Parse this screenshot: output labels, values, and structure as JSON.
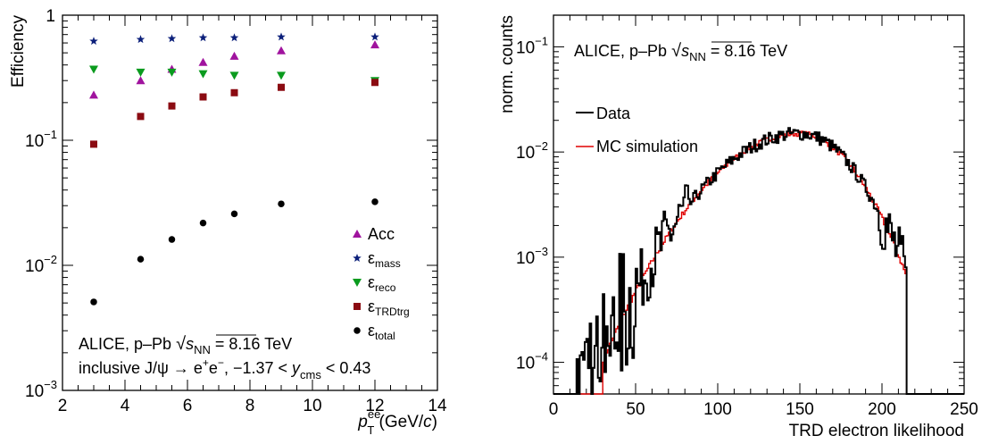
{
  "chart_data": [
    {
      "type": "scatter",
      "ylog": true,
      "xlim": [
        2,
        14
      ],
      "ylim": [
        0.001,
        1
      ],
      "x_ticks": [
        2,
        4,
        6,
        8,
        10,
        12,
        14
      ],
      "x_tick_labels": [
        "2",
        "4",
        "6",
        "8",
        "10",
        "12",
        "14"
      ],
      "y_ticks": [
        0.001,
        0.01,
        0.1,
        1
      ],
      "y_tick_labels": [
        {
          "base": "10",
          "exp": "−3"
        },
        {
          "base": "10",
          "exp": "−2"
        },
        {
          "base": "10",
          "exp": "−1"
        },
        {
          "base": "1",
          "exp": ""
        }
      ],
      "ylabel": "Efficiency",
      "xlabel": {
        "main": "p",
        "sub": "T",
        "sup": "ee",
        "unit": " (GeV/",
        "unit_italic": "c",
        "unit_close": ")"
      },
      "series": [
        {
          "name": "Acc",
          "sub": "",
          "color": "#a0139e",
          "marker": "triangle-up",
          "x": [
            3,
            4.5,
            5.5,
            6.5,
            7.5,
            9,
            12
          ],
          "y": [
            0.23,
            0.3,
            0.37,
            0.42,
            0.47,
            0.52,
            0.58
          ]
        },
        {
          "name": "ε",
          "sub": "mass",
          "color": "#0b1f7a",
          "marker": "star",
          "x": [
            3,
            4.5,
            5.5,
            6.5,
            7.5,
            9,
            12
          ],
          "y": [
            0.62,
            0.64,
            0.65,
            0.66,
            0.66,
            0.67,
            0.67
          ]
        },
        {
          "name": "ε",
          "sub": "reco",
          "color": "#0a9b1e",
          "marker": "triangle-down",
          "x": [
            3,
            4.5,
            5.5,
            6.5,
            7.5,
            9,
            12
          ],
          "y": [
            0.37,
            0.35,
            0.35,
            0.34,
            0.33,
            0.33,
            0.3
          ]
        },
        {
          "name": "ε",
          "sub": "TRDtrg",
          "color": "#8b0b12",
          "marker": "square",
          "x": [
            3,
            4.5,
            5.5,
            6.5,
            7.5,
            9,
            12
          ],
          "y": [
            0.093,
            0.155,
            0.188,
            0.222,
            0.24,
            0.265,
            0.29
          ]
        },
        {
          "name": "ε",
          "sub": "total",
          "color": "#000000",
          "marker": "circle",
          "x": [
            3,
            4.5,
            5.5,
            6.5,
            7.5,
            9,
            12
          ],
          "y": [
            0.0051,
            0.0112,
            0.0161,
            0.0218,
            0.0258,
            0.031,
            0.0322
          ]
        }
      ],
      "legend_placement": "bottom-right",
      "annotations": [
        {
          "text": "ALICE, p–Pb ",
          "sqrt": "s",
          "sqrt_sub": "NN",
          "after": " = 8.16 TeV"
        },
        {
          "text": "inclusive J/ψ → e",
          "sup1": "+",
          "mid": "e",
          "sup2": "−",
          "rest": ", −1.37 < ",
          "ital": "y",
          "ital_sub": "cms",
          "end": " < 0.43"
        }
      ]
    },
    {
      "type": "line",
      "ylog": true,
      "xlim": [
        0,
        250
      ],
      "ylim": [
        5e-05,
        0.2
      ],
      "x_ticks": [
        0,
        50,
        100,
        150,
        200,
        250
      ],
      "x_tick_labels": [
        "0",
        "50",
        "100",
        "150",
        "200",
        "250"
      ],
      "y_ticks": [
        0.0001,
        0.001,
        0.01,
        0.1
      ],
      "y_tick_labels": [
        {
          "base": "10",
          "exp": "−4"
        },
        {
          "base": "10",
          "exp": "−3"
        },
        {
          "base": "10",
          "exp": "−2"
        },
        {
          "base": "10",
          "exp": "−1"
        }
      ],
      "xlabel": "TRD electron likelihood",
      "ylabel": "norm. counts",
      "series": [
        {
          "name": "Data",
          "color": "#000000",
          "style": "histogram-step",
          "bin_width": 1,
          "start_x": 0,
          "values_note": "",
          "shape": {
            "peak_x": 150,
            "peak_y": 0.015,
            "left_sigma": 38,
            "right_sigma": 26,
            "cut_low": 12,
            "cut_high": 214
          }
        },
        {
          "name": "MC simulation",
          "color": "#e00000",
          "style": "histogram-step",
          "bin_width": 1,
          "shape": {
            "peak_x": 150,
            "peak_y": 0.015,
            "left_sigma": 38,
            "right_sigma": 26,
            "cut_low": 30,
            "cut_high": 214
          }
        }
      ],
      "legend_placement": "top-left",
      "annotations": [
        {
          "text": "ALICE, p–Pb ",
          "sqrt": "s",
          "sqrt_sub": "NN",
          "after": " = 8.16 TeV"
        }
      ]
    }
  ]
}
